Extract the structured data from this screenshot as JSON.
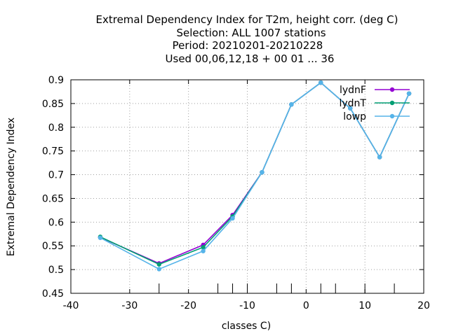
{
  "chart_data": {
    "type": "line",
    "title_lines": [
      "Extremal Dependency Index  for T2m, height corr. (deg C)",
      "Selection: ALL   1007 stations",
      "Period: 20210201-20210228",
      "Used  00,06,12,18 + 00 01 ... 36"
    ],
    "xlabel": "classes C)",
    "ylabel": "Extremal Dependency Index",
    "xlim": [
      -40,
      20
    ],
    "ylim": [
      0.45,
      0.9
    ],
    "xticks": [
      -40,
      -30,
      -20,
      -10,
      0,
      10,
      20
    ],
    "xtick_labels": [
      "-40",
      "-30",
      "-20",
      "-10",
      "0",
      "10",
      "20"
    ],
    "yticks": [
      0.45,
      0.5,
      0.55,
      0.6,
      0.65,
      0.7,
      0.75,
      0.8,
      0.85,
      0.9
    ],
    "ytick_labels": [
      "0.45",
      "0.5",
      "0.55",
      "0.6",
      "0.65",
      "0.7",
      "0.75",
      "0.8",
      "0.85",
      "0.9"
    ],
    "bottom_minor_ticks_x": [
      -25,
      -15,
      -12.5,
      -10,
      -5,
      -2.5,
      2.5,
      5,
      10,
      15
    ],
    "grid": true,
    "legend_position": "top-right",
    "series": [
      {
        "name": "lydnF",
        "color": "#9400d3",
        "x": [
          -35,
          -25,
          -17.5,
          -12.5,
          -7.5,
          -2.5,
          2.5,
          7.5,
          12.5,
          17.5
        ],
        "y": [
          0.568,
          0.513,
          0.552,
          0.615,
          0.705,
          0.848,
          0.894,
          0.84,
          0.737,
          0.871
        ]
      },
      {
        "name": "lydnT",
        "color": "#009e73",
        "x": [
          -35,
          -25,
          -17.5,
          -12.5,
          -7.5,
          -2.5,
          2.5,
          7.5,
          12.5,
          17.5
        ],
        "y": [
          0.569,
          0.511,
          0.547,
          0.612,
          0.705,
          0.848,
          0.894,
          0.84,
          0.737,
          0.871
        ]
      },
      {
        "name": "lowp",
        "color": "#56b4e9",
        "x": [
          -35,
          -25,
          -17.5,
          -12.5,
          -7.5,
          -2.5,
          2.5,
          7.5,
          12.5,
          17.5
        ],
        "y": [
          0.567,
          0.501,
          0.539,
          0.608,
          0.705,
          0.848,
          0.894,
          0.84,
          0.737,
          0.871
        ]
      }
    ]
  }
}
